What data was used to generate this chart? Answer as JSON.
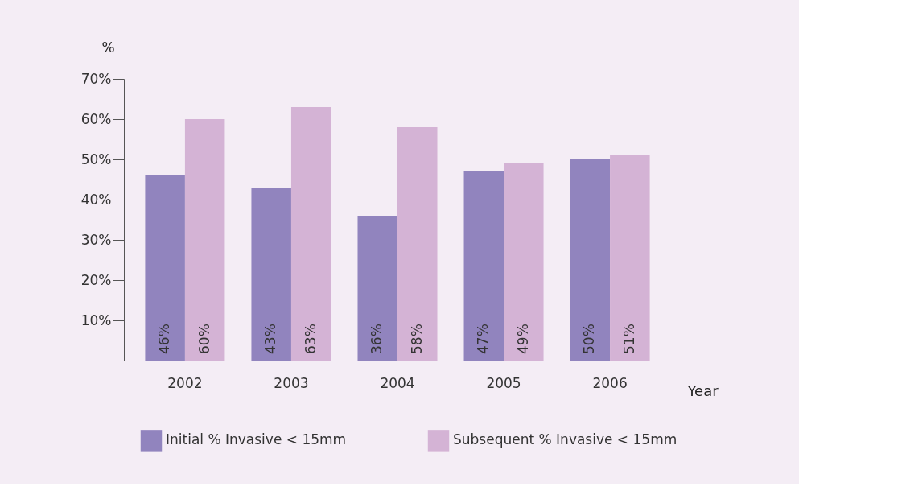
{
  "chart_data": {
    "type": "bar",
    "xlabel": "Year",
    "ylabel": "%",
    "categories": [
      "2002",
      "2003",
      "2004",
      "2005",
      "2006"
    ],
    "series": [
      {
        "name": "Initial % Invasive < 15mm",
        "color": "#9184be",
        "values": [
          46,
          43,
          36,
          47,
          50
        ],
        "value_labels": [
          "46%",
          "43%",
          "36%",
          "47%",
          "50%"
        ]
      },
      {
        "name": "Subsequent % Invasive < 15mm",
        "color": "#d4b3d5",
        "values": [
          60,
          63,
          58,
          49,
          51
        ],
        "value_labels": [
          "60%",
          "63%",
          "58%",
          "49%",
          "51%"
        ]
      }
    ],
    "ylim": [
      0,
      70
    ],
    "yticks": [
      {
        "value": 10,
        "label": "10%"
      },
      {
        "value": 20,
        "label": "20%"
      },
      {
        "value": 30,
        "label": "30%"
      },
      {
        "value": 40,
        "label": "40%"
      },
      {
        "value": 50,
        "label": "50%"
      },
      {
        "value": 60,
        "label": "60%"
      },
      {
        "value": 70,
        "label": "70%"
      }
    ],
    "grid": false,
    "legend": "bottom"
  }
}
